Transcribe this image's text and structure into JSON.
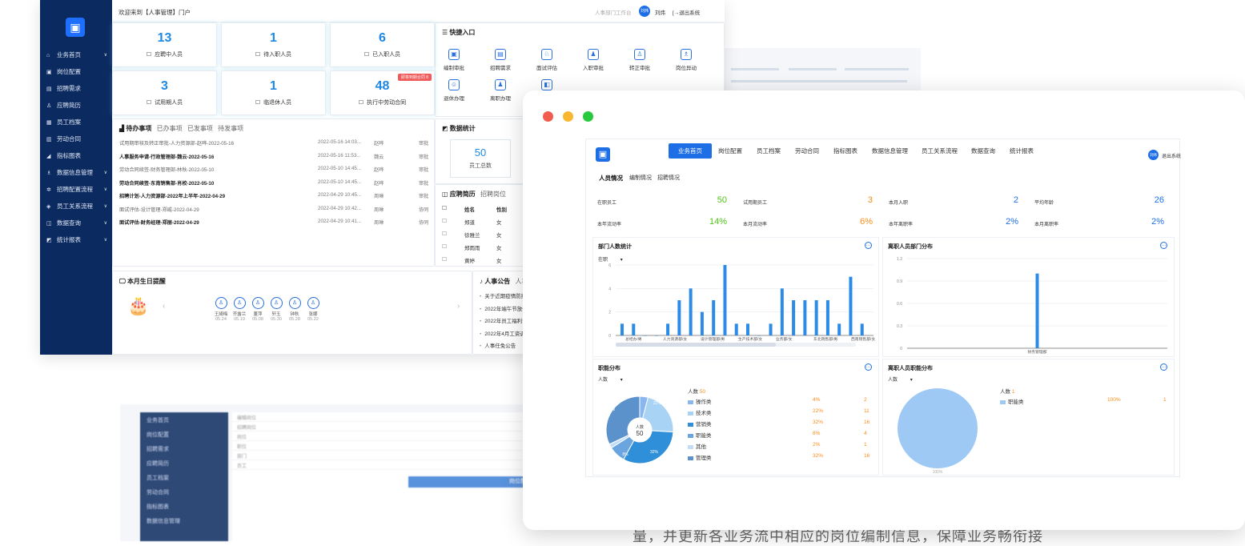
{
  "caption": "量，并更新各业务流中相应的岗位编制信息，保障业务畅衔接",
  "background": {
    "nav_items": [
      "业务首页",
      "岗位配置",
      "招聘需求",
      "应聘简历",
      "员工档案",
      "劳动合同",
      "指标图表",
      "数据信息管理",
      "招聘配置流程",
      "员工关系流程",
      "数据查询",
      "统计报表"
    ],
    "dialog_title": "岗位配置",
    "rows": [
      "编辑岗位",
      "招聘岗位",
      "岗位",
      "职位",
      "部门",
      "员工"
    ]
  },
  "portal": {
    "welcome": "欢迎来到【人事管理】门户",
    "workbench": "人事部门工作台",
    "user_avatar": "刘炜",
    "user_name": "刘炜",
    "logout": "[→退出系统",
    "nav": [
      {
        "label": "业务首页",
        "icon": "⌂",
        "chev": true
      },
      {
        "label": "岗位配置",
        "icon": "▣",
        "chev": false
      },
      {
        "label": "招聘需求",
        "icon": "▤",
        "chev": false
      },
      {
        "label": "应聘简历",
        "icon": "♙",
        "chev": false
      },
      {
        "label": "员工档案",
        "icon": "▦",
        "chev": false
      },
      {
        "label": "劳动合同",
        "icon": "▥",
        "chev": false
      },
      {
        "label": "指标图表",
        "icon": "◢",
        "chev": false
      },
      {
        "label": "数据信息管理",
        "icon": "♗",
        "chev": true
      },
      {
        "label": "招聘配置流程",
        "icon": "✲",
        "chev": true
      },
      {
        "label": "员工关系流程",
        "icon": "◈",
        "chev": true
      },
      {
        "label": "数据查询",
        "icon": "◫",
        "chev": true
      },
      {
        "label": "统计报表",
        "icon": "◩",
        "chev": true
      }
    ],
    "stats": [
      {
        "num": "13",
        "label": "应聘中人员",
        "icon": "☐"
      },
      {
        "num": "1",
        "label": "待入职人员",
        "icon": "☐"
      },
      {
        "num": "6",
        "label": "已入职人员",
        "icon": "☐"
      },
      {
        "num": "3",
        "label": "试用期人员",
        "icon": "☐"
      },
      {
        "num": "1",
        "label": "临退休人员",
        "icon": "☐"
      },
      {
        "num": "48",
        "label": "执行中劳动合同",
        "icon": "☐",
        "badge": "即将到期合同 8"
      }
    ],
    "quick_title": "快捷入口",
    "quick": [
      "编制审批",
      "招聘需求",
      "面试评估",
      "入职审批",
      "转正审批",
      "岗位异动",
      "退休办理",
      "离职办理",
      "解"
    ],
    "todo_tabs": [
      "待办事项",
      "已办事项",
      "已发事项",
      "待发事项"
    ],
    "todos": [
      {
        "title": "试用期审核及转正审批-人力资源部-赵晔-2022-05-16",
        "time": "2022-05-16 14:03...",
        "person": "赵晔",
        "type": "审批",
        "bold": false
      },
      {
        "title": "人事服务申请-行政管理部-魏云-2022-05-16",
        "time": "2022-05-16 11:53...",
        "person": "魏云",
        "type": "审批",
        "bold": true
      },
      {
        "title": "劳动合同续签-财务管理部-林秋-2022-05-10",
        "time": "2022-05-10 14:45...",
        "person": "赵晔",
        "type": "审批",
        "bold": false
      },
      {
        "title": "劳动合同续签-东南销售部-肖校-2022-05-10",
        "time": "2022-05-10 14:45...",
        "person": "赵晔",
        "type": "审批",
        "bold": true
      },
      {
        "title": "招聘计划-人力资源部-2022年上半年-2022-04-29",
        "time": "2022-04-29 10:45...",
        "person": "周琳",
        "type": "审批",
        "bold": true
      },
      {
        "title": "面试评估-设计管理-郑威-2022-04-29",
        "time": "2022-04-29 10:42...",
        "person": "周琳",
        "type": "协同",
        "bold": false
      },
      {
        "title": "面试评估-财务经理-郑丽-2022-04-29",
        "time": "2022-04-29 10:41...",
        "person": "周琳",
        "type": "协同",
        "bold": true
      }
    ],
    "datastat_title": "数据统计",
    "total_staff": "50",
    "total_staff_label": "员工总数",
    "resume_tabs": [
      "应聘简历",
      "招聘岗位"
    ],
    "resume_headers": [
      "姓名",
      "性别"
    ],
    "resumes": [
      [
        "郑道",
        "女"
      ],
      [
        "徐雅兰",
        "女"
      ],
      [
        "郑雨雨",
        "女"
      ],
      [
        "黄婷",
        "女"
      ]
    ],
    "birthday_title": "本月生日提醒",
    "birthdays": [
      {
        "name": "王綺梅",
        "date": "05.24"
      },
      {
        "name": "齐露兰",
        "date": "05.19"
      },
      {
        "name": "董萍",
        "date": "05.08"
      },
      {
        "name": "轩玉",
        "date": "05.30"
      },
      {
        "name": "钟秋",
        "date": "05.28"
      },
      {
        "name": "张娜",
        "date": "05.22"
      }
    ],
    "notice_tabs": [
      "人事公告",
      "人事调查"
    ],
    "notices": [
      "关于近期疫情防控的工作通知",
      "2022年端午节放假通知",
      "2022年员工福利说明",
      "2022年4月工资调整发放通知",
      "人事任免公告"
    ]
  },
  "dashboard": {
    "nav": [
      "业务首页",
      "岗位配置",
      "员工档案",
      "劳动合同",
      "指标图表",
      "数据信息管理",
      "员工关系流程",
      "数据查询",
      "统计报表"
    ],
    "avatar": "刘炜",
    "logout": "退出系统",
    "tabs": [
      "人员情况",
      "编制情况",
      "招聘情况"
    ],
    "kpis": [
      {
        "label": "在职员工",
        "value": "50",
        "color": "#52c41a"
      },
      {
        "label": "试用期员工",
        "value": "3",
        "color": "#fa8c16"
      },
      {
        "label": "本月入职",
        "value": "2",
        "color": "#1e6fe6"
      },
      {
        "label": "平均年龄",
        "value": "26",
        "color": "#1e6fe6"
      },
      {
        "label": "本年流动率",
        "value": "14%",
        "color": "#52c41a"
      },
      {
        "label": "本月流动率",
        "value": "6%",
        "color": "#fa8c16"
      },
      {
        "label": "本年离职率",
        "value": "2%",
        "color": "#1e6fe6"
      },
      {
        "label": "本月离职率",
        "value": "2%",
        "color": "#1e6fe6"
      }
    ],
    "panel_titles": [
      "部门人数统计",
      "离职人员部门分布",
      "职能分布",
      "离职人员职能分布"
    ],
    "dept_filter": "在职",
    "count_filter": "人数",
    "func_total_label": "人数",
    "func_total": "50",
    "resign_total_label": "人数",
    "resign_total": "1",
    "func_legend": [
      {
        "name": "操作类",
        "pct": "4%",
        "count": "2",
        "color": "#8ab8ee"
      },
      {
        "name": "技术类",
        "pct": "22%",
        "count": "11",
        "color": "#a8d3f5"
      },
      {
        "name": "营销类",
        "pct": "32%",
        "count": "16",
        "color": "#2f8fd8"
      },
      {
        "name": "职能类",
        "pct": "8%",
        "count": "4",
        "color": "#6aa5e0"
      },
      {
        "name": "其他",
        "pct": "2%",
        "count": "1",
        "color": "#c2ddf7"
      },
      {
        "name": "管理类",
        "pct": "32%",
        "count": "16",
        "color": "#5b92cc"
      }
    ],
    "resign_legend": [
      {
        "name": "职能类",
        "pct": "100%",
        "count": "1",
        "color": "#9ec9f5"
      }
    ],
    "pie_label_100": "100%"
  },
  "chart_data": [
    {
      "type": "bar",
      "title": "部门人数统计",
      "ylim": [
        0,
        6
      ],
      "yticks": [
        "0",
        "2",
        "4",
        "6"
      ],
      "xticklabels": [
        "总经办/男",
        "人力资源部/女",
        "设计管理部/男",
        "生产技术部/女",
        "业务部/女",
        "东北销售部/男",
        "西南销售部/女"
      ],
      "values": [
        1,
        1,
        0,
        0,
        1,
        3,
        4,
        2,
        3,
        6,
        1,
        1,
        0,
        1,
        4,
        3,
        3,
        3,
        3,
        1,
        5,
        1
      ],
      "color": "#2d8be8"
    },
    {
      "type": "bar",
      "title": "离职人员部门分布",
      "ylim": [
        0,
        1.2
      ],
      "yticks": [
        "0",
        "0.3",
        "0.6",
        "0.9",
        "1.2"
      ],
      "xticklabels": [
        "财务管理部"
      ],
      "values": [
        1
      ],
      "color": "#2d8be8"
    },
    {
      "type": "pie",
      "title": "职能分布",
      "labels": [
        "操作类",
        "技术类",
        "营销类",
        "职能类",
        "其他",
        "管理类"
      ],
      "values": [
        2,
        11,
        16,
        4,
        1,
        16
      ],
      "percent_labels": [
        "22%",
        "32%",
        "32%",
        "8%"
      ]
    },
    {
      "type": "pie",
      "title": "离职人员职能分布",
      "labels": [
        "职能类"
      ],
      "values": [
        1
      ]
    }
  ]
}
